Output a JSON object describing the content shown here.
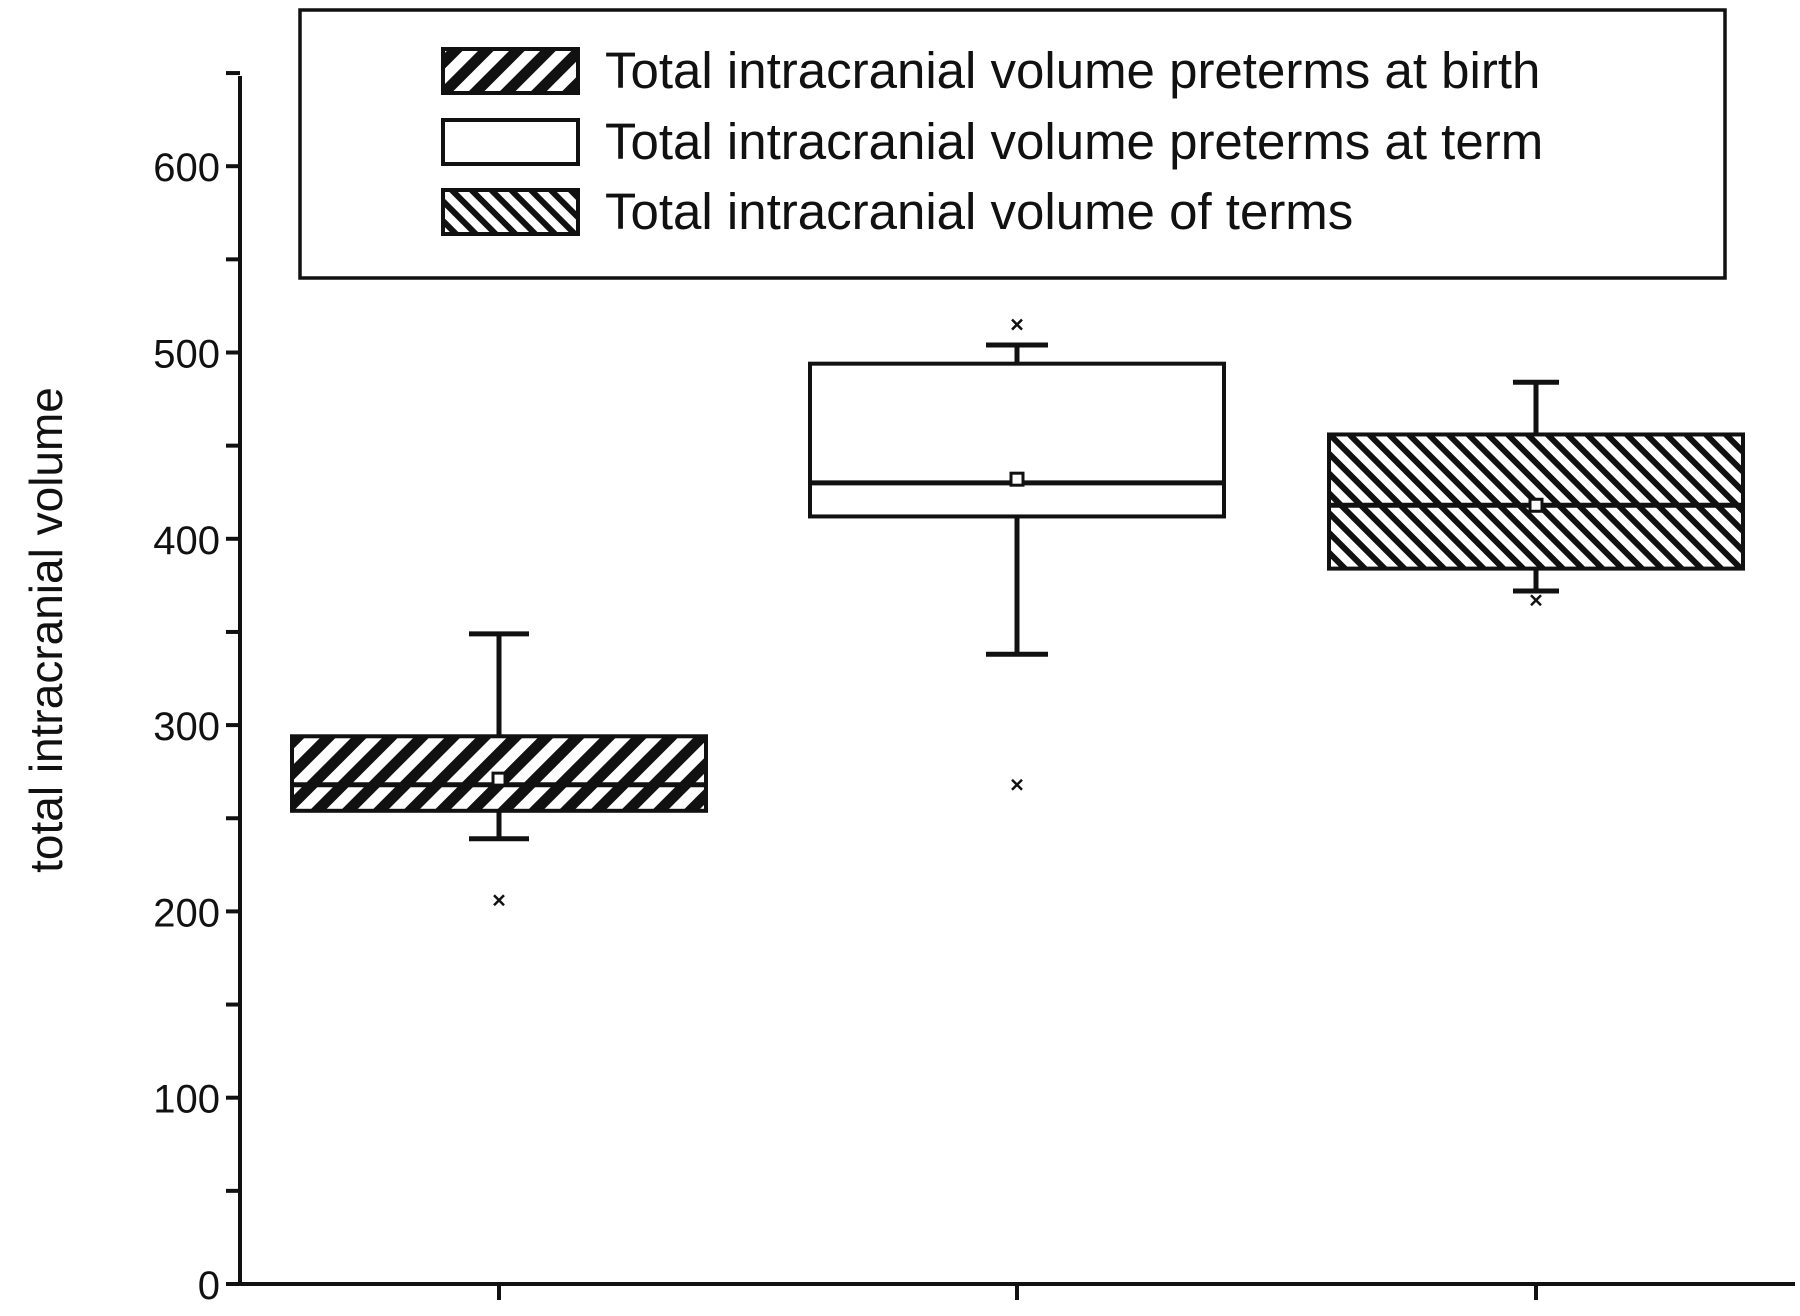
{
  "chart_data": {
    "type": "box",
    "title": "",
    "xlabel": "",
    "ylabel": "total intracranial volume",
    "ylim": [
      0,
      650
    ],
    "y_ticks": [
      0,
      100,
      200,
      300,
      400,
      500,
      600
    ],
    "y_minor_step": 50,
    "legend_position": "top-right",
    "series": [
      {
        "name": "Total intracranial volume preterms at birth",
        "pattern": "hatch-backslash",
        "whisker_low": 239,
        "q1": 254,
        "median": 268,
        "q3": 294,
        "whisker_high": 349,
        "mean": 271,
        "outliers": [
          206
        ]
      },
      {
        "name": "Total intracranial volume preterms at term",
        "pattern": "none",
        "whisker_low": 338,
        "q1": 412,
        "median": 430,
        "q3": 494,
        "whisker_high": 504,
        "mean": 432,
        "outliers": [
          268,
          515
        ]
      },
      {
        "name": "Total intracranial volume of terms",
        "pattern": "hatch-slash",
        "whisker_low": 372,
        "q1": 384,
        "median": 418,
        "q3": 456,
        "whisker_high": 484,
        "mean": 418,
        "outliers": [
          367
        ]
      }
    ],
    "colors": {
      "line": "#111111",
      "fill": "#ffffff",
      "background": "#ffffff"
    }
  }
}
